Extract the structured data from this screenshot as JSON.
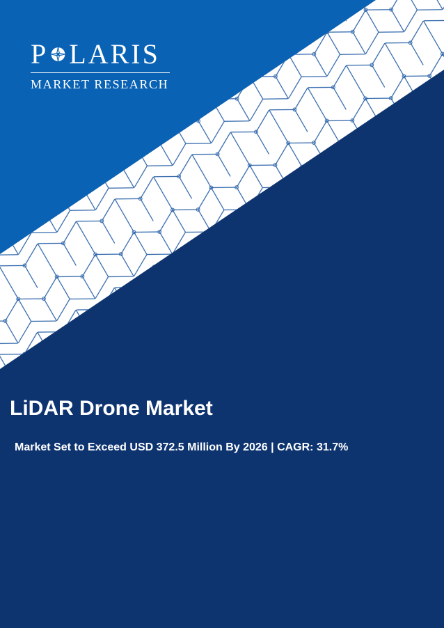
{
  "logo": {
    "word_start": "P",
    "word_end": "LARIS",
    "subtitle": "MARKET RESEARCH"
  },
  "report": {
    "title": "LiDAR Drone Market",
    "subtitle": "Market Set to Exceed USD 372.5 Million By 2026 | CAGR: 31.7%"
  },
  "colors": {
    "dark_navy": "#0e3470",
    "bright_blue": "#0a62b4",
    "band_white": "#ffffff",
    "lattice_line": "#2a62a8"
  },
  "icons": [
    "compass-star-icon"
  ]
}
